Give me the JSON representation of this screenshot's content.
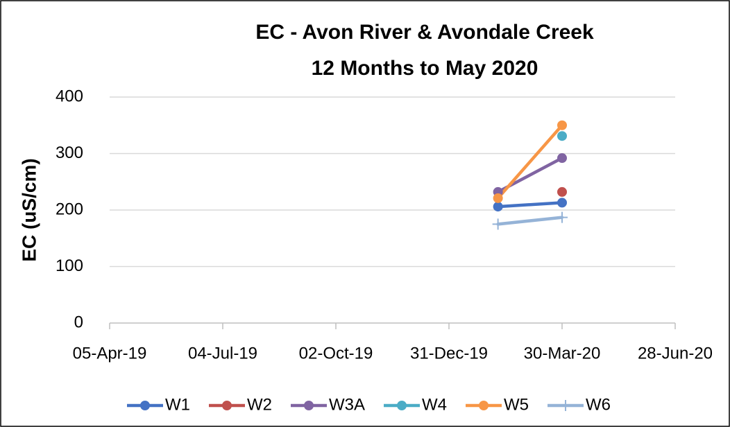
{
  "chart_data": {
    "type": "line",
    "title": "EC - Avon River & Avondale Creek",
    "subtitle": "12 Months to May 2020",
    "y_label": "EC (uS/cm)",
    "x": [
      "2020-02-08",
      "2020-03-30"
    ],
    "xlim": [
      "2019-04-05",
      "2020-06-28"
    ],
    "xticks": [
      {
        "value": "2019-04-05",
        "label": "05-Apr-19"
      },
      {
        "value": "2019-07-04",
        "label": "04-Jul-19"
      },
      {
        "value": "2019-10-02",
        "label": "02-Oct-19"
      },
      {
        "value": "2019-12-31",
        "label": "31-Dec-19"
      },
      {
        "value": "2020-03-30",
        "label": "30-Mar-20"
      },
      {
        "value": "2020-06-28",
        "label": "28-Jun-20"
      }
    ],
    "ylim": [
      0,
      400
    ],
    "yticks": [
      0,
      100,
      200,
      300,
      400
    ],
    "grid": true,
    "legend": "bottom",
    "series": [
      {
        "name": "W1",
        "color": "#4472c4",
        "marker": "circle",
        "values": [
          206,
          213
        ]
      },
      {
        "name": "W2",
        "color": "#c0504d",
        "marker": "circle",
        "values": [
          null,
          232
        ]
      },
      {
        "name": "W3A",
        "color": "#8064a2",
        "marker": "circle",
        "values": [
          232,
          292
        ]
      },
      {
        "name": "W4",
        "color": "#4bacc6",
        "marker": "circle",
        "values": [
          null,
          331
        ]
      },
      {
        "name": "W5",
        "color": "#f79646",
        "marker": "circle",
        "values": [
          221,
          350
        ]
      },
      {
        "name": "W6",
        "color": "#95b3d7",
        "marker": "plus",
        "values": [
          175,
          187
        ]
      }
    ]
  }
}
